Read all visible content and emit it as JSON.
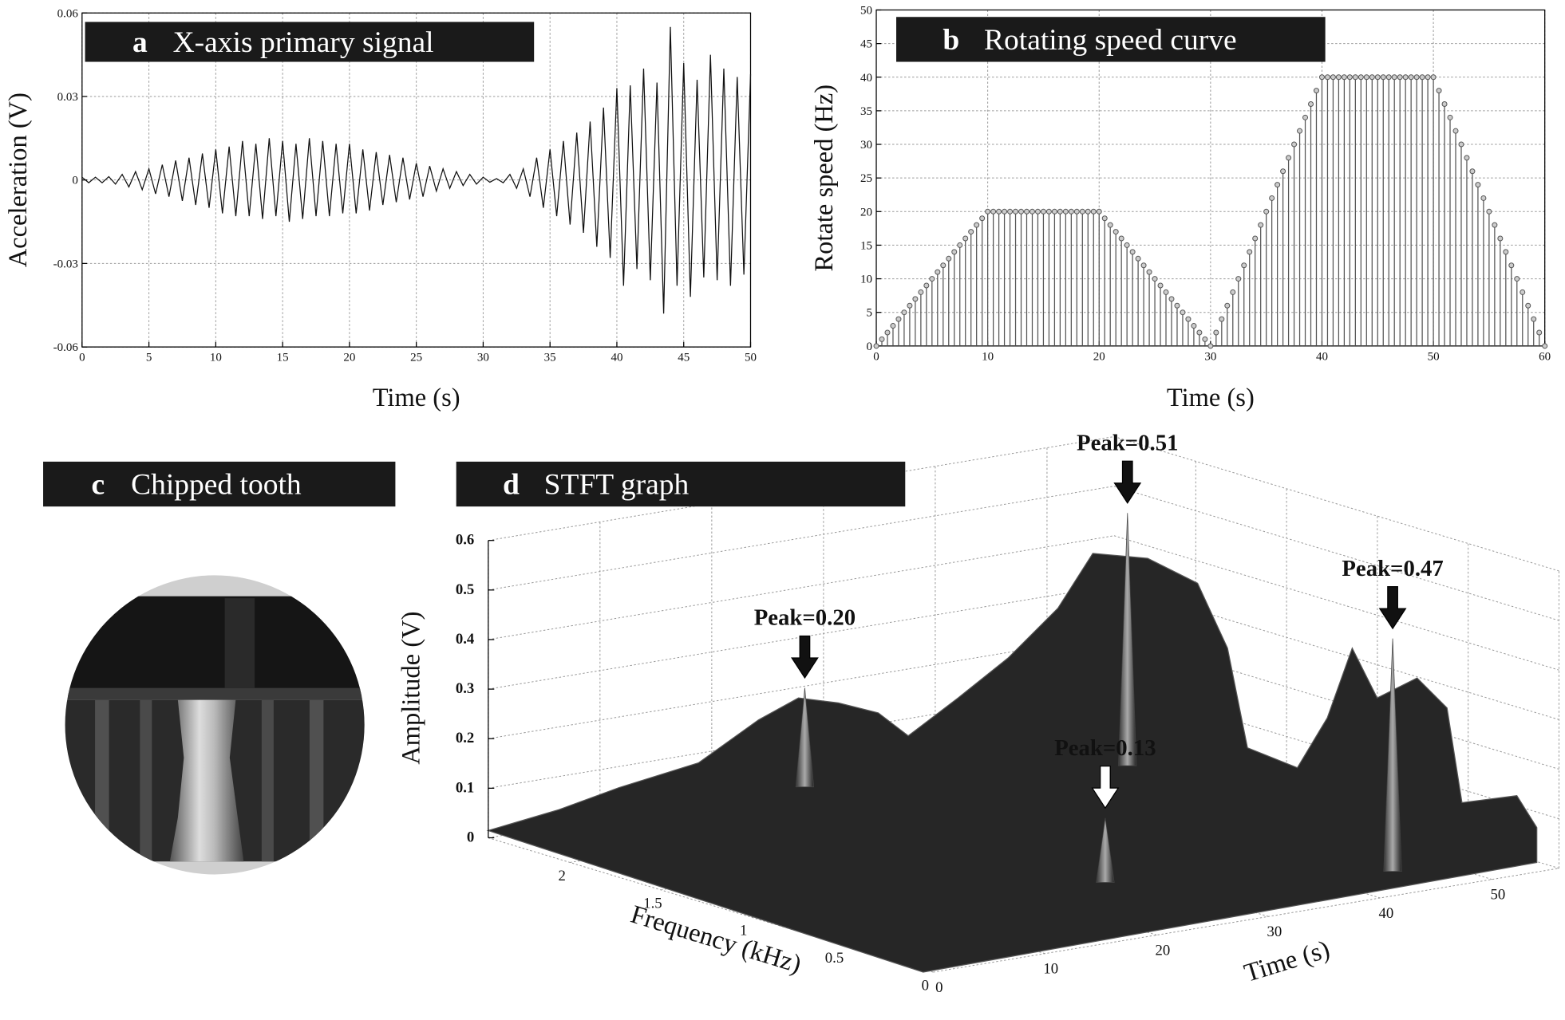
{
  "chart_data": [
    {
      "type": "line",
      "panel_label": "a",
      "title": "X-axis primary signal",
      "xlabel": "Time (s)",
      "ylabel": "Acceleration (V)",
      "color": "#111111",
      "grid": true,
      "xlim": [
        0,
        50
      ],
      "ylim": [
        -0.06,
        0.06
      ],
      "xticks": [
        0,
        5,
        10,
        15,
        20,
        25,
        30,
        35,
        40,
        45,
        50
      ],
      "yticks": [
        -0.06,
        -0.03,
        0,
        0.03,
        0.06
      ],
      "x": [
        0,
        0.5,
        1,
        1.5,
        2,
        2.5,
        3,
        3.5,
        4,
        4.5,
        5,
        5.5,
        6,
        6.5,
        7,
        7.5,
        8,
        8.5,
        9,
        9.5,
        10,
        10.5,
        11,
        11.5,
        12,
        12.5,
        13,
        13.5,
        14,
        14.5,
        15,
        15.5,
        16,
        16.5,
        17,
        17.5,
        18,
        18.5,
        19,
        19.5,
        20,
        20.5,
        21,
        21.5,
        22,
        22.5,
        23,
        23.5,
        24,
        24.5,
        25,
        25.5,
        26,
        26.5,
        27,
        27.5,
        28,
        28.5,
        29,
        29.5,
        30,
        30.5,
        31,
        31.5,
        32,
        32.5,
        33,
        33.5,
        34,
        34.5,
        35,
        35.5,
        36,
        36.5,
        37,
        37.5,
        38,
        38.5,
        39,
        39.5,
        40,
        40.5,
        41,
        41.5,
        42,
        42.5,
        43,
        43.5,
        44,
        44.5,
        45,
        45.5,
        46,
        46.5,
        47,
        47.5,
        48,
        48.5,
        49,
        49.5,
        50
      ],
      "values": [
        0.001,
        -0.001,
        0.001,
        -0.001,
        0.0012,
        -0.0015,
        0.002,
        -0.0025,
        0.003,
        -0.0035,
        0.004,
        -0.005,
        0.0055,
        -0.006,
        0.007,
        -0.0075,
        0.008,
        -0.009,
        0.0095,
        -0.01,
        0.011,
        -0.012,
        0.012,
        -0.013,
        0.014,
        -0.013,
        0.013,
        -0.014,
        0.015,
        -0.013,
        0.014,
        -0.015,
        0.013,
        -0.014,
        0.015,
        -0.013,
        0.014,
        -0.013,
        0.013,
        -0.012,
        0.013,
        -0.012,
        0.011,
        -0.011,
        0.01,
        -0.009,
        0.009,
        -0.008,
        0.008,
        -0.007,
        0.006,
        -0.006,
        0.005,
        -0.004,
        0.004,
        -0.003,
        0.003,
        -0.002,
        0.002,
        -0.0015,
        0.001,
        -0.0008,
        0.0005,
        -0.001,
        0.002,
        -0.003,
        0.004,
        -0.006,
        0.008,
        -0.01,
        0.011,
        -0.013,
        0.014,
        -0.016,
        0.017,
        -0.019,
        0.021,
        -0.024,
        0.026,
        -0.028,
        0.033,
        -0.038,
        0.034,
        -0.032,
        0.04,
        -0.036,
        0.035,
        -0.048,
        0.055,
        -0.038,
        0.042,
        -0.042,
        0.036,
        -0.035,
        0.045,
        -0.036,
        0.04,
        -0.038,
        0.037,
        -0.034,
        0.038
      ]
    },
    {
      "type": "stem",
      "panel_label": "b",
      "title": "Rotating speed curve",
      "xlabel": "Time (s)",
      "ylabel": "Rotate speed (Hz)",
      "color": "#555555",
      "grid": true,
      "xlim": [
        0,
        60
      ],
      "ylim": [
        0,
        50
      ],
      "xticks": [
        0,
        10,
        20,
        30,
        40,
        50,
        60
      ],
      "yticks": [
        0,
        5,
        10,
        15,
        20,
        25,
        30,
        35,
        40,
        45,
        50
      ],
      "x": [
        0,
        0.5,
        1,
        1.5,
        2,
        2.5,
        3,
        3.5,
        4,
        4.5,
        5,
        5.5,
        6,
        6.5,
        7,
        7.5,
        8,
        8.5,
        9,
        9.5,
        10,
        10.5,
        11,
        11.5,
        12,
        12.5,
        13,
        13.5,
        14,
        14.5,
        15,
        15.5,
        16,
        16.5,
        17,
        17.5,
        18,
        18.5,
        19,
        19.5,
        20,
        20.5,
        21,
        21.5,
        22,
        22.5,
        23,
        23.5,
        24,
        24.5,
        25,
        25.5,
        26,
        26.5,
        27,
        27.5,
        28,
        28.5,
        29,
        29.5,
        30,
        30.5,
        31,
        31.5,
        32,
        32.5,
        33,
        33.5,
        34,
        34.5,
        35,
        35.5,
        36,
        36.5,
        37,
        37.5,
        38,
        38.5,
        39,
        39.5,
        40,
        40.5,
        41,
        41.5,
        42,
        42.5,
        43,
        43.5,
        44,
        44.5,
        45,
        45.5,
        46,
        46.5,
        47,
        47.5,
        48,
        48.5,
        49,
        49.5,
        50,
        50.5,
        51,
        51.5,
        52,
        52.5,
        53,
        53.5,
        54,
        54.5,
        55,
        55.5,
        56,
        56.5,
        57,
        57.5,
        58,
        58.5,
        59,
        59.5,
        60
      ],
      "values": [
        0,
        1,
        2,
        3,
        4,
        5,
        6,
        7,
        8,
        9,
        10,
        11,
        12,
        13,
        14,
        15,
        16,
        17,
        18,
        19,
        20,
        20,
        20,
        20,
        20,
        20,
        20,
        20,
        20,
        20,
        20,
        20,
        20,
        20,
        20,
        20,
        20,
        20,
        20,
        20,
        20,
        19,
        18,
        17,
        16,
        15,
        14,
        13,
        12,
        11,
        10,
        9,
        8,
        7,
        6,
        5,
        4,
        3,
        2,
        1,
        0,
        2,
        4,
        6,
        8,
        10,
        12,
        14,
        16,
        18,
        20,
        22,
        24,
        26,
        28,
        30,
        32,
        34,
        36,
        38,
        40,
        40,
        40,
        40,
        40,
        40,
        40,
        40,
        40,
        40,
        40,
        40,
        40,
        40,
        40,
        40,
        40,
        40,
        40,
        40,
        40,
        38,
        36,
        34,
        32,
        30,
        28,
        26,
        24,
        22,
        20,
        18,
        16,
        14,
        12,
        10,
        8,
        6,
        4,
        2,
        0
      ]
    },
    {
      "type": "image",
      "panel_label": "c",
      "title": "Chipped tooth"
    },
    {
      "type": "surface",
      "panel_label": "d",
      "title": "STFT graph",
      "xlabel": "Time (s)",
      "ylabel": "Frequency (kHz)",
      "zlabel": "Amplitude (V)",
      "grid": true,
      "xlim": [
        0,
        56
      ],
      "ylim": [
        0,
        2.45
      ],
      "zlim": [
        0,
        0.6
      ],
      "xticks": [
        0,
        10,
        20,
        30,
        40,
        50
      ],
      "yticks": [
        0,
        0.5,
        1,
        1.5,
        2
      ],
      "zticks": [
        0,
        0.1,
        0.2,
        0.3,
        0.4,
        0.5,
        0.6
      ],
      "peaks": [
        {
          "label": "Peak=0.20",
          "value": 0.2,
          "time": 28,
          "frequency": 2.43,
          "color": "#111111"
        },
        {
          "label": "Peak=0.51",
          "value": 0.51,
          "time": 50.7,
          "frequency": 2.05,
          "color": "#111111"
        },
        {
          "label": "Peak=0.13",
          "value": 0.13,
          "time": 27.1,
          "frequency": 0.72,
          "color": "#ffffff"
        },
        {
          "label": "Peak=0.47",
          "value": 0.47,
          "time": 45.8,
          "frequency": 0.288,
          "color": "#111111"
        }
      ]
    }
  ]
}
